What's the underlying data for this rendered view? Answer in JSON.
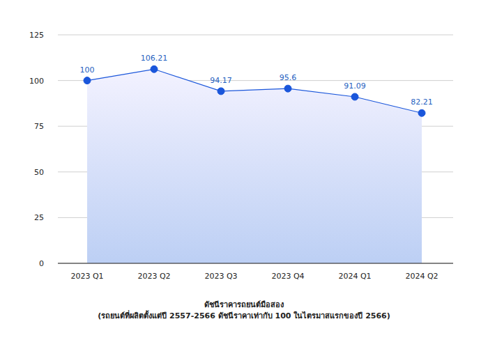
{
  "chart_data": {
    "type": "area",
    "categories": [
      "2023 Q1",
      "2023 Q2",
      "2023 Q3",
      "2023 Q4",
      "2024 Q1",
      "2024 Q2"
    ],
    "values": [
      100,
      106.21,
      94.17,
      95.6,
      91.09,
      82.21
    ],
    "color": "#1a56db",
    "ylim": [
      0,
      125
    ],
    "yticks": [
      0,
      25,
      50,
      75,
      100,
      125
    ],
    "grid": true,
    "data_labels": true,
    "marker": "circle",
    "x_label": [
      "ดัชนีราคารถยนต์มือสอง",
      "(รถยนต์ที่ผลิตตั้งแต่ปี 2557-2566 ดัชนีราคาเท่ากับ 100 ในไตรมาสแรกของปี 2566)"
    ]
  }
}
